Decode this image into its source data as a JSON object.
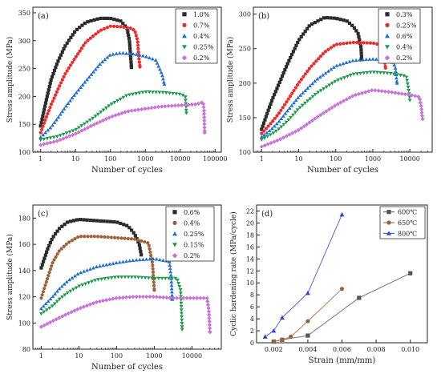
{
  "chart_data": [
    {
      "type": "scatter",
      "panel_label": "(a)",
      "xlabel": "Number of cycles",
      "ylabel": "Stress amplitude (MPa)",
      "xscale": "log",
      "xlim": [
        0.6,
        150000
      ],
      "ylim": [
        100,
        360
      ],
      "xticks": [
        1,
        10,
        100,
        1000,
        10000,
        100000
      ],
      "xtick_labels": [
        "1",
        "10",
        "100",
        "1000",
        "10000",
        "100000"
      ],
      "yticks": [
        100,
        150,
        200,
        250,
        300,
        350
      ],
      "ytick_labels": [
        "100",
        "150",
        "200",
        "250",
        "300",
        "350"
      ],
      "grid": false,
      "legend_position": "top-right",
      "series": [
        {
          "name": "1.0%",
          "color": "#2b2b2b",
          "marker": "square",
          "points": [
            [
              1,
              147
            ],
            [
              1.5,
              197
            ],
            [
              2,
              230
            ],
            [
              3,
              260
            ],
            [
              5,
              290
            ],
            [
              10,
              318
            ],
            [
              20,
              333
            ],
            [
              50,
              340
            ],
            [
              100,
              340
            ],
            [
              200,
              335
            ],
            [
              300,
              322
            ],
            [
              350,
              300
            ],
            [
              380,
              270
            ],
            [
              400,
              252
            ]
          ]
        },
        {
          "name": "0.7%",
          "color": "#ee2b2b",
          "marker": "circle",
          "points": [
            [
              1,
              135
            ],
            [
              1.5,
              165
            ],
            [
              2,
              185
            ],
            [
              3,
              210
            ],
            [
              5,
              240
            ],
            [
              10,
              270
            ],
            [
              20,
              298
            ],
            [
              50,
              318
            ],
            [
              100,
              326
            ],
            [
              200,
              325
            ],
            [
              400,
              322
            ],
            [
              500,
              318
            ],
            [
              600,
              300
            ],
            [
              650,
              270
            ],
            [
              700,
              253
            ]
          ]
        },
        {
          "name": "0.4%",
          "color": "#1f6fd0",
          "marker": "triangle",
          "points": [
            [
              1,
              127
            ],
            [
              2,
              145
            ],
            [
              3,
              160
            ],
            [
              5,
              180
            ],
            [
              10,
              205
            ],
            [
              20,
              228
            ],
            [
              50,
              258
            ],
            [
              100,
              275
            ],
            [
              200,
              278
            ],
            [
              500,
              276
            ],
            [
              1000,
              272
            ],
            [
              2000,
              265
            ],
            [
              3000,
              240
            ],
            [
              3500,
              222
            ]
          ]
        },
        {
          "name": "0.25%",
          "color": "#1d9a4c",
          "marker": "triangle-down",
          "points": [
            [
              1,
              122
            ],
            [
              3,
              128
            ],
            [
              10,
              140
            ],
            [
              30,
              160
            ],
            [
              100,
              185
            ],
            [
              300,
              202
            ],
            [
              1000,
              208
            ],
            [
              3000,
              207
            ],
            [
              10000,
              204
            ],
            [
              14000,
              200
            ],
            [
              15000,
              170
            ]
          ]
        },
        {
          "name": "0.2%",
          "color": "#c873d8",
          "marker": "diamond",
          "points": [
            [
              1,
              113
            ],
            [
              3,
              120
            ],
            [
              10,
              133
            ],
            [
              30,
              148
            ],
            [
              100,
              163
            ],
            [
              300,
              173
            ],
            [
              1000,
              178
            ],
            [
              3000,
              182
            ],
            [
              10000,
              184
            ],
            [
              30000,
              186
            ],
            [
              45000,
              190
            ],
            [
              48000,
              175
            ],
            [
              50000,
              135
            ]
          ]
        }
      ]
    },
    {
      "type": "scatter",
      "panel_label": "(b)",
      "xlabel": "Number of cycles",
      "ylabel": "Stress amplitude (MPa)",
      "xscale": "log",
      "xlim": [
        0.6,
        40000
      ],
      "ylim": [
        100,
        310
      ],
      "xticks": [
        1,
        10,
        100,
        1000,
        10000
      ],
      "xtick_labels": [
        "1",
        "10",
        "100",
        "1000",
        "10000"
      ],
      "yticks": [
        100,
        150,
        200,
        250,
        300
      ],
      "ytick_labels": [
        "100",
        "150",
        "200",
        "250",
        "300"
      ],
      "grid": false,
      "legend_position": "top-right",
      "series": [
        {
          "name": "0.3%",
          "color": "#2b2b2b",
          "marker": "square",
          "points": [
            [
              1,
              133
            ],
            [
              1.5,
              160
            ],
            [
              2,
              178
            ],
            [
              3,
              200
            ],
            [
              5,
              228
            ],
            [
              10,
              262
            ],
            [
              20,
              284
            ],
            [
              50,
              295
            ],
            [
              100,
              294
            ],
            [
              200,
              290
            ],
            [
              300,
              282
            ],
            [
              400,
              272
            ],
            [
              480,
              252
            ],
            [
              500,
              235
            ]
          ]
        },
        {
          "name": "0.25%",
          "color": "#ee2b2b",
          "marker": "circle",
          "points": [
            [
              1,
              127
            ],
            [
              2,
              145
            ],
            [
              3,
              157
            ],
            [
              5,
              175
            ],
            [
              10,
              200
            ],
            [
              20,
              222
            ],
            [
              50,
              245
            ],
            [
              100,
              256
            ],
            [
              300,
              259
            ],
            [
              1000,
              258
            ],
            [
              1800,
              255
            ],
            [
              2000,
              240
            ],
            [
              2200,
              222
            ]
          ]
        },
        {
          "name": "0.6%",
          "color": "#1f6fd0",
          "marker": "triangle",
          "points": [
            [
              1,
              122
            ],
            [
              2,
              135
            ],
            [
              3,
              145
            ],
            [
              5,
              160
            ],
            [
              10,
              180
            ],
            [
              30,
              205
            ],
            [
              100,
              225
            ],
            [
              300,
              233
            ],
            [
              1000,
              235
            ],
            [
              3000,
              233
            ],
            [
              4000,
              225
            ],
            [
              4500,
              200
            ]
          ]
        },
        {
          "name": "0.4%",
          "color": "#1d9a4c",
          "marker": "triangle-down",
          "points": [
            [
              1,
              118
            ],
            [
              2,
              127
            ],
            [
              3,
              134
            ],
            [
              5,
              145
            ],
            [
              10,
              163
            ],
            [
              30,
              185
            ],
            [
              100,
              203
            ],
            [
              300,
              213
            ],
            [
              1000,
              216
            ],
            [
              3000,
              214
            ],
            [
              8000,
              210
            ],
            [
              9000,
              195
            ],
            [
              10000,
              175
            ]
          ]
        },
        {
          "name": "0.2%",
          "color": "#c873d8",
          "marker": "diamond",
          "points": [
            [
              1,
              108
            ],
            [
              3,
              118
            ],
            [
              10,
              132
            ],
            [
              30,
              150
            ],
            [
              100,
              168
            ],
            [
              300,
              182
            ],
            [
              1000,
              190
            ],
            [
              3000,
              187
            ],
            [
              10000,
              183
            ],
            [
              18000,
              180
            ],
            [
              20000,
              168
            ],
            [
              22000,
              148
            ]
          ]
        }
      ]
    },
    {
      "type": "scatter",
      "panel_label": "(c)",
      "xlabel": "Number of cycles",
      "ylabel": "Stress amplitude (MPa)",
      "xscale": "log",
      "xlim": [
        0.6,
        60000
      ],
      "ylim": [
        80,
        190
      ],
      "xticks": [
        1,
        10,
        100,
        1000,
        10000
      ],
      "xtick_labels": [
        "1",
        "10",
        "100",
        "1000",
        "10000"
      ],
      "yticks": [
        80,
        100,
        120,
        140,
        160,
        180
      ],
      "ytick_labels": [
        "80",
        "100",
        "120",
        "140",
        "160",
        "180"
      ],
      "grid": false,
      "legend_position": "top-right",
      "series": [
        {
          "name": "0.6%",
          "color": "#2b2b2b",
          "marker": "square",
          "points": [
            [
              1,
              142
            ],
            [
              1.5,
              157
            ],
            [
              2,
              165
            ],
            [
              3,
              172
            ],
            [
              5,
              177
            ],
            [
              10,
              179
            ],
            [
              30,
              178
            ],
            [
              100,
              177
            ],
            [
              200,
              174
            ],
            [
              300,
              168
            ],
            [
              400,
              160
            ],
            [
              450,
              152
            ]
          ]
        },
        {
          "name": "0.4%",
          "color": "#a0603a",
          "marker": "circle",
          "points": [
            [
              1,
              119
            ],
            [
              1.5,
              135
            ],
            [
              2,
              146
            ],
            [
              3,
              155
            ],
            [
              5,
              161
            ],
            [
              10,
              166
            ],
            [
              30,
              166
            ],
            [
              100,
              165
            ],
            [
              300,
              164
            ],
            [
              700,
              161
            ],
            [
              900,
              145
            ],
            [
              1000,
              125
            ]
          ]
        },
        {
          "name": "0.25%",
          "color": "#1f6fd0",
          "marker": "triangle",
          "points": [
            [
              1,
              111
            ],
            [
              2,
              120
            ],
            [
              3,
              126
            ],
            [
              5,
              132
            ],
            [
              10,
              138
            ],
            [
              30,
              143
            ],
            [
              100,
              146
            ],
            [
              300,
              148
            ],
            [
              1000,
              149
            ],
            [
              2500,
              147
            ],
            [
              2800,
              135
            ],
            [
              3000,
              118
            ]
          ]
        },
        {
          "name": "0.15%",
          "color": "#1d9a4c",
          "marker": "triangle-down",
          "points": [
            [
              1,
              107
            ],
            [
              2,
              113
            ],
            [
              3,
              118
            ],
            [
              5,
              123
            ],
            [
              10,
              128
            ],
            [
              30,
              133
            ],
            [
              100,
              135
            ],
            [
              300,
              135
            ],
            [
              1000,
              134
            ],
            [
              4000,
              134
            ],
            [
              5000,
              125
            ],
            [
              5500,
              95
            ]
          ]
        },
        {
          "name": "0.2%",
          "color": "#c873d8",
          "marker": "diamond",
          "points": [
            [
              1,
              97
            ],
            [
              3,
              104
            ],
            [
              10,
              111
            ],
            [
              30,
              116
            ],
            [
              100,
              119
            ],
            [
              300,
              120
            ],
            [
              1000,
              120
            ],
            [
              3000,
              119
            ],
            [
              10000,
              119
            ],
            [
              25000,
              119
            ],
            [
              28000,
              110
            ],
            [
              30000,
              93
            ]
          ]
        }
      ]
    },
    {
      "type": "line",
      "panel_label": "(d)",
      "xlabel": "Strain (mm/mm)",
      "ylabel": "Cyclic hardening rate (MPa/cycle)",
      "xlim": [
        0.001,
        0.011
      ],
      "ylim": [
        0,
        23
      ],
      "xticks": [
        0.002,
        0.004,
        0.006,
        0.008,
        0.01
      ],
      "xtick_labels": [
        "0.002",
        "0.004",
        "0.006",
        "0.008",
        "0.010"
      ],
      "yticks": [
        0,
        2,
        4,
        6,
        8,
        10,
        12,
        14,
        16,
        18,
        20,
        22
      ],
      "ytick_labels": [
        "0",
        "2",
        "4",
        "6",
        "8",
        "10",
        "12",
        "14",
        "16",
        "18",
        "20",
        "22"
      ],
      "grid": false,
      "legend_position": "top-right",
      "series": [
        {
          "name": "600℃",
          "color": "#555555",
          "marker": "square",
          "points": [
            [
              0.002,
              0.2
            ],
            [
              0.0025,
              0.5
            ],
            [
              0.004,
              1.2
            ],
            [
              0.007,
              7.5
            ],
            [
              0.01,
              11.6
            ]
          ]
        },
        {
          "name": "650℃",
          "color": "#a0603a",
          "marker": "circle",
          "points": [
            [
              0.002,
              0.2
            ],
            [
              0.0025,
              0.5
            ],
            [
              0.003,
              1.0
            ],
            [
              0.004,
              3.6
            ],
            [
              0.006,
              9.0
            ]
          ]
        },
        {
          "name": "800℃",
          "color": "#2a45d4",
          "marker": "triangle",
          "points": [
            [
              0.0015,
              1.0
            ],
            [
              0.002,
              2.0
            ],
            [
              0.0025,
              4.2
            ],
            [
              0.004,
              8.3
            ],
            [
              0.006,
              21.4
            ]
          ]
        }
      ]
    }
  ]
}
